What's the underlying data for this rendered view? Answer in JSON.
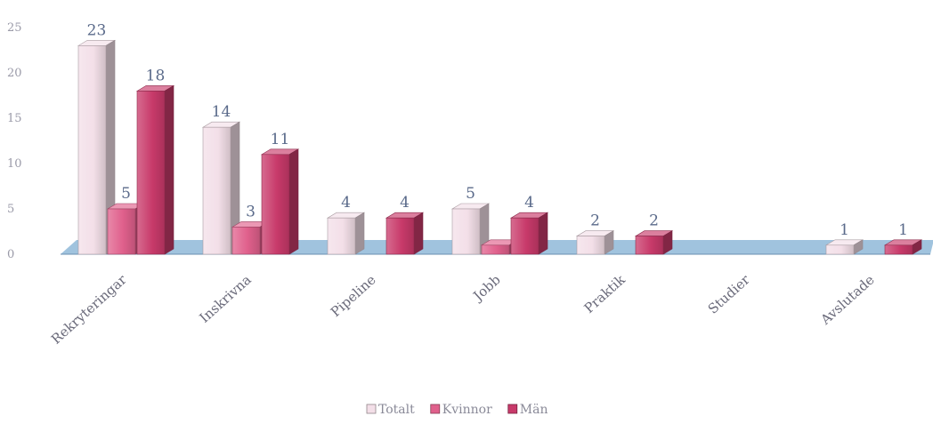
{
  "chart_data": {
    "type": "bar",
    "style": "3d-clustered",
    "categories": [
      "Rekryteringar",
      "Inskrivna",
      "Pipeline",
      "Jobb",
      "Praktik",
      "Studier",
      "Avslutade"
    ],
    "series": [
      {
        "name": "Totalt",
        "values": [
          23,
          14,
          4,
          5,
          2,
          0,
          1
        ],
        "color": "#f3dfe8"
      },
      {
        "name": "Kvinnor",
        "values": [
          5,
          3,
          0,
          1,
          0,
          0,
          0
        ],
        "color": "#e0608c"
      },
      {
        "name": "Män",
        "values": [
          18,
          11,
          4,
          4,
          2,
          0,
          1
        ],
        "color": "#c83a6a"
      }
    ],
    "data_labels": [
      {
        "series": "Totalt",
        "category": "Rekryteringar",
        "text": "23"
      },
      {
        "series": "Kvinnor",
        "category": "Rekryteringar",
        "text": "5"
      },
      {
        "series": "Män",
        "category": "Rekryteringar",
        "text": "18"
      },
      {
        "series": "Totalt",
        "category": "Inskrivna",
        "text": "14"
      },
      {
        "series": "Kvinnor",
        "category": "Inskrivna",
        "text": "3"
      },
      {
        "series": "Män",
        "category": "Inskrivna",
        "text": "11"
      },
      {
        "series": "Totalt",
        "category": "Pipeline",
        "text": "4"
      },
      {
        "series": "Män",
        "category": "Pipeline",
        "text": "4"
      },
      {
        "series": "Totalt",
        "category": "Jobb",
        "text": "5"
      },
      {
        "series": "Män",
        "category": "Jobb",
        "text": "4"
      },
      {
        "series": "Totalt",
        "category": "Praktik",
        "text": "2"
      },
      {
        "series": "Män",
        "category": "Praktik",
        "text": "2"
      },
      {
        "series": "Totalt",
        "category": "Avslutade",
        "text": "1"
      },
      {
        "series": "Män",
        "category": "Avslutade",
        "text": "1"
      }
    ],
    "yticks": [
      "0",
      "5",
      "10",
      "15",
      "20",
      "25"
    ],
    "ylim": [
      0,
      25
    ],
    "title": "",
    "xlabel": "",
    "ylabel": "",
    "legend_position": "bottom",
    "floor_color": "#8fb8d8"
  }
}
